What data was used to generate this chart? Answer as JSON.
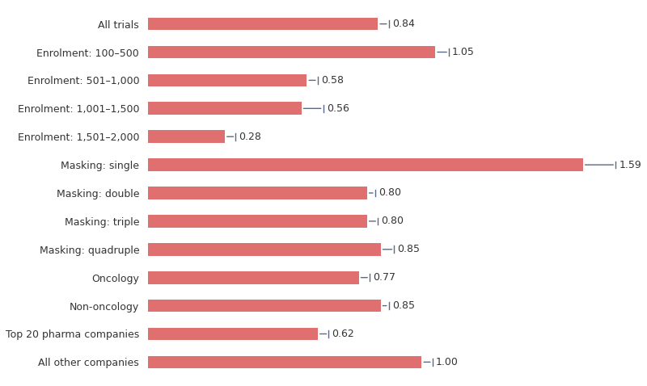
{
  "categories": [
    "All trials",
    "Enrolment: 100–500",
    "Enrolment: 501–1,000",
    "Enrolment: 1,001–1,500",
    "Enrolment: 1,501–2,000",
    "Masking: single",
    "Masking: double",
    "Masking: triple",
    "Masking: quadruple",
    "Oncology",
    "Non-oncology",
    "Top 20 pharma companies",
    "All other companies"
  ],
  "values": [
    0.84,
    1.05,
    0.58,
    0.56,
    0.28,
    1.59,
    0.8,
    0.8,
    0.85,
    0.77,
    0.85,
    0.62,
    1.0
  ],
  "errors": [
    0.04,
    0.05,
    0.04,
    0.08,
    0.04,
    0.12,
    0.03,
    0.04,
    0.05,
    0.04,
    0.03,
    0.04,
    0.04
  ],
  "bar_color": "#e07070",
  "error_color": "#5a6a80",
  "text_color": "#333333",
  "background_color": "#ffffff",
  "bar_height": 0.45,
  "xlim": [
    0,
    1.72
  ],
  "label_fontsize": 9,
  "value_fontsize": 9
}
